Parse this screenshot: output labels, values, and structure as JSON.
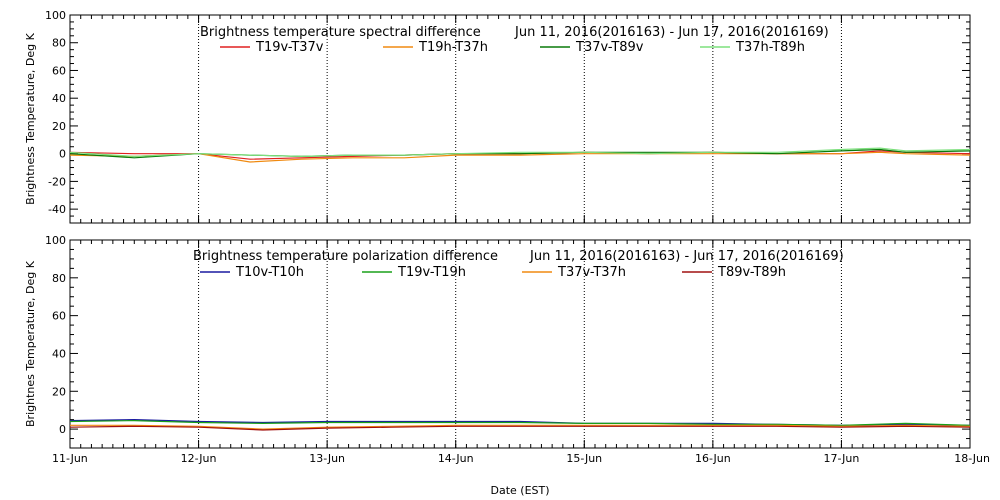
{
  "chart_data": [
    {
      "type": "line",
      "title": "Brightness temperature spectral difference",
      "date_range": "Jun 11, 2016(2016163) - Jun 17, 2016(2016169)",
      "ylabel": "Brightness Temperature, Deg K",
      "ylim": [
        -50,
        100
      ],
      "yticks": [
        "-40",
        "-20",
        "0",
        "20",
        "40",
        "60",
        "80",
        "100"
      ],
      "ytick_values": [
        -40,
        -20,
        0,
        20,
        40,
        60,
        80,
        100
      ],
      "xlim": [
        0,
        7
      ],
      "grid": true,
      "legend_position": "top",
      "series": [
        {
          "name": "T19v-T37v",
          "color": "#e02020",
          "x": [
            0,
            0.5,
            1,
            1.4,
            1.8,
            2.2,
            2.6,
            3,
            3.5,
            4,
            4.5,
            5,
            5.5,
            6,
            6.3,
            6.5,
            7
          ],
          "values": [
            1,
            0,
            0,
            -4,
            -3,
            -2,
            -1,
            0,
            0,
            1,
            0,
            1,
            0,
            0,
            2,
            1,
            0
          ]
        },
        {
          "name": "T19h-T37h",
          "color": "#f08a10",
          "x": [
            0,
            0.5,
            1,
            1.4,
            1.8,
            2.2,
            2.6,
            3,
            3.5,
            4,
            4.5,
            5,
            5.5,
            6,
            6.3,
            6.5,
            7
          ],
          "values": [
            -1,
            -2,
            0,
            -6,
            -4,
            -3,
            -3,
            -1,
            -1,
            0,
            0,
            0,
            0,
            0,
            1,
            0,
            -1
          ]
        },
        {
          "name": "T37v-T89v",
          "color": "#0a7a0a",
          "x": [
            0,
            0.5,
            1,
            1.4,
            1.8,
            2.2,
            2.6,
            3,
            3.5,
            4,
            4.5,
            5,
            5.5,
            6,
            6.3,
            6.5,
            7
          ],
          "values": [
            0,
            -3,
            0,
            -1,
            -2,
            -1,
            -1,
            0,
            0,
            1,
            1,
            1,
            0,
            2,
            3,
            1,
            2
          ]
        },
        {
          "name": "T37h-T89h",
          "color": "#7de07d",
          "x": [
            0,
            0.5,
            1,
            1.4,
            1.8,
            2.2,
            2.6,
            3,
            3.5,
            4,
            4.5,
            5,
            5.5,
            6,
            6.3,
            6.5,
            7
          ],
          "values": [
            1,
            -2,
            0,
            -1,
            -2,
            -1,
            -1,
            0,
            1,
            1,
            0,
            1,
            1,
            3,
            4,
            2,
            3
          ]
        }
      ]
    },
    {
      "type": "line",
      "title": "Brightness temperature polarization difference",
      "date_range": "Jun 11, 2016(2016163) - Jun 17, 2016(2016169)",
      "ylabel": "Brightnes Temperature, Deg K",
      "ylim": [
        -10,
        100
      ],
      "yticks": [
        "0",
        "20",
        "40",
        "60",
        "80",
        "100"
      ],
      "ytick_values": [
        0,
        20,
        40,
        60,
        80,
        100
      ],
      "xlabel": "Date (EST)",
      "xlim": [
        0,
        7
      ],
      "xticks": [
        "11-Jun",
        "12-Jun",
        "13-Jun",
        "14-Jun",
        "15-Jun",
        "16-Jun",
        "17-Jun",
        "18-Jun"
      ],
      "xtick_values": [
        0,
        1,
        2,
        3,
        4,
        5,
        6,
        7
      ],
      "grid": true,
      "legend_position": "top",
      "series": [
        {
          "name": "T10v-T10h",
          "color": "#1a1aa0",
          "x": [
            0,
            0.5,
            1,
            1.5,
            2,
            2.5,
            3,
            3.5,
            4,
            4.5,
            5,
            5.5,
            6,
            6.5,
            7
          ],
          "values": [
            4.5,
            5,
            4,
            3.5,
            4,
            4,
            4,
            4,
            3,
            3,
            3,
            2.5,
            2,
            2.5,
            2
          ]
        },
        {
          "name": "T19v-T19h",
          "color": "#1aa01a",
          "x": [
            0,
            0.5,
            1,
            1.5,
            2,
            2.5,
            3,
            3.5,
            4,
            4.5,
            5,
            5.5,
            6,
            6.5,
            7
          ],
          "values": [
            4,
            4.5,
            3.5,
            3,
            3.5,
            3.5,
            3.5,
            3.5,
            3,
            3,
            2.5,
            2.5,
            2,
            3,
            2
          ]
        },
        {
          "name": "T37v-T37h",
          "color": "#f08a10",
          "x": [
            0,
            0.5,
            1,
            1.5,
            2,
            2.5,
            3,
            3.5,
            4,
            4.5,
            5,
            5.5,
            6,
            6.5,
            7
          ],
          "values": [
            2,
            2,
            1.5,
            0,
            1,
            1.5,
            2,
            2,
            2,
            2,
            2,
            2,
            1.5,
            2,
            1.5
          ]
        },
        {
          "name": "T89v-T89h",
          "color": "#a01010",
          "x": [
            0,
            0.5,
            1,
            1.5,
            2,
            2.5,
            3,
            3.5,
            4,
            4.5,
            5,
            5.5,
            6,
            6.5,
            7
          ],
          "values": [
            1,
            1.5,
            1,
            -0.5,
            0.5,
            1,
            1.5,
            1.5,
            1.5,
            1.5,
            1.5,
            1.5,
            1,
            1.5,
            1
          ]
        }
      ]
    }
  ]
}
